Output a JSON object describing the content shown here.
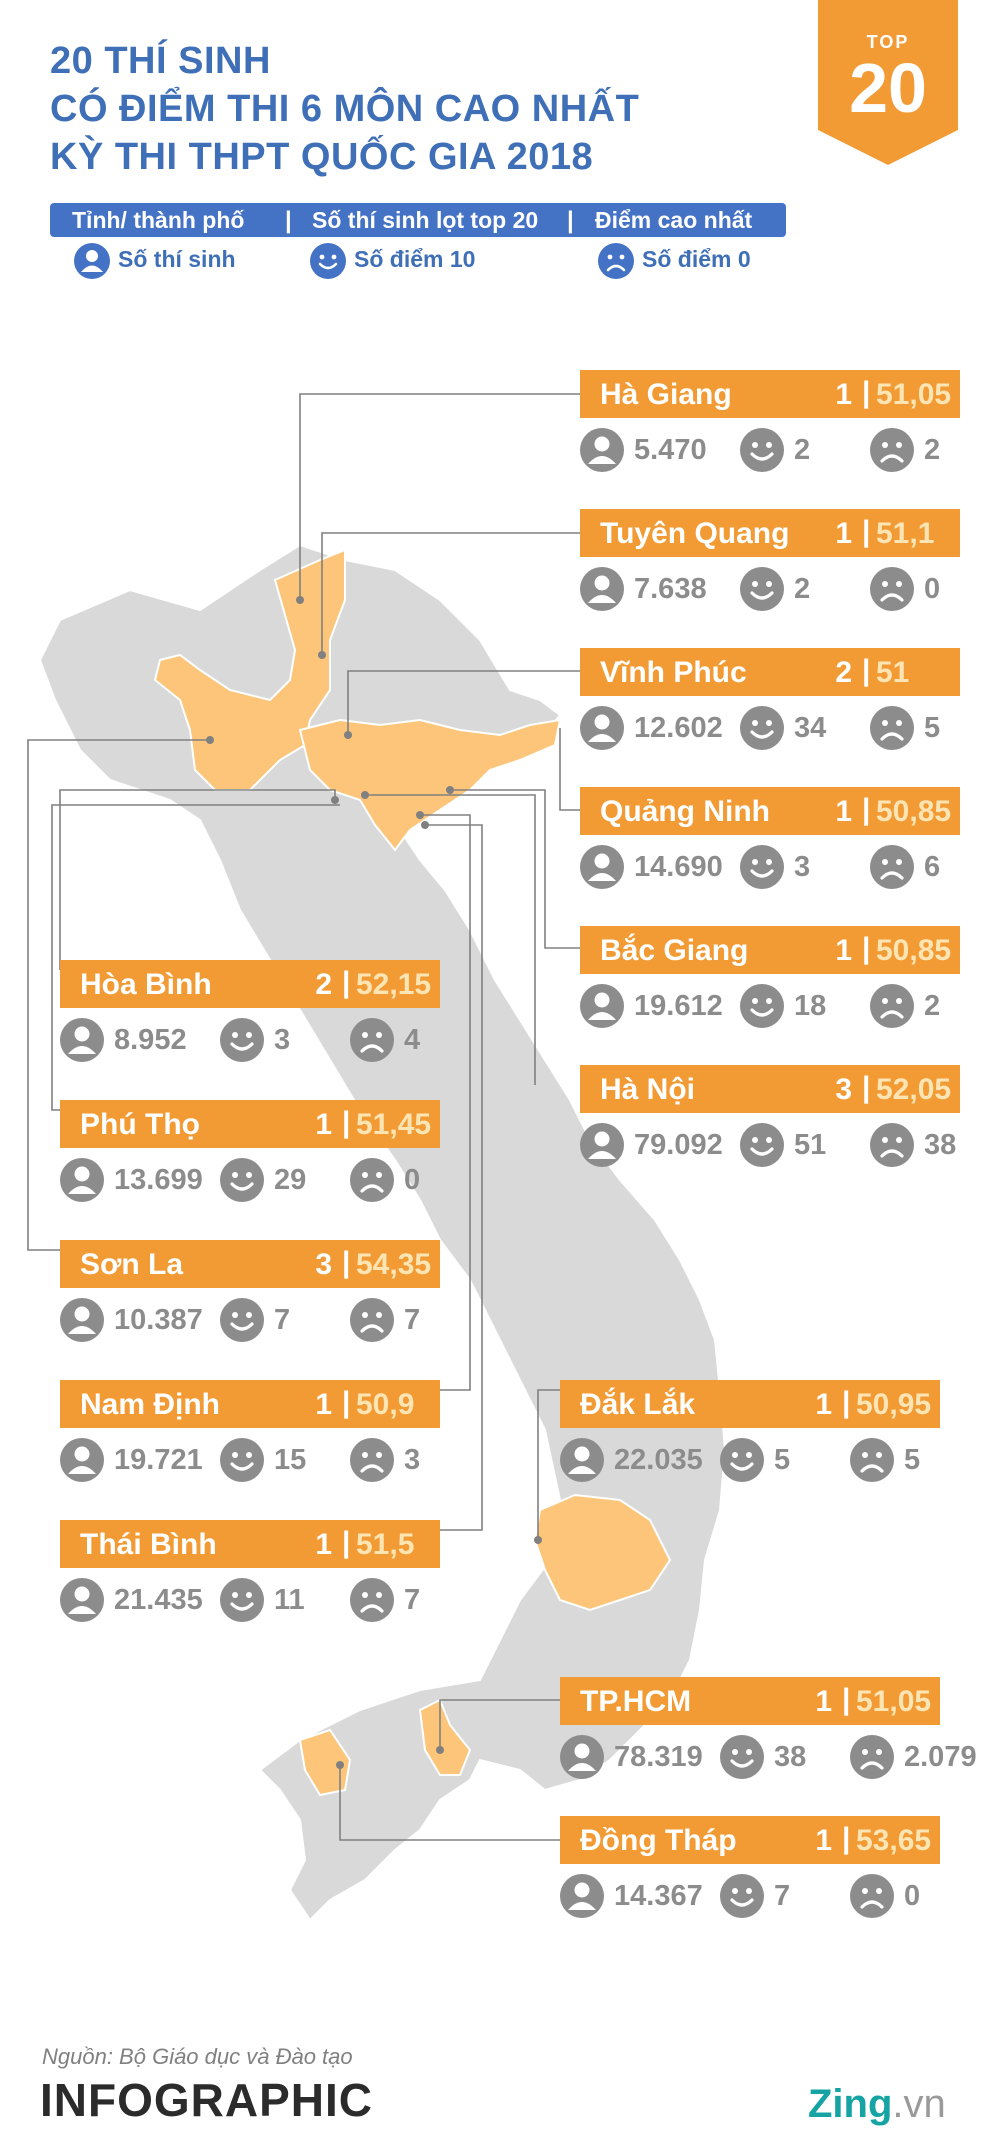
{
  "title": {
    "line1": "20 THÍ SINH",
    "line2": "CÓ ĐIỂM THI 6 MÔN CAO NHẤT",
    "line3": "KỲ THI THPT QUỐC GIA 2018"
  },
  "badge": {
    "top": "TOP",
    "number": "20"
  },
  "legend": {
    "col1": "Tỉnh/ thành phố",
    "col2": "Số thí sinh lọt top 20",
    "col3": "Điểm cao nhất",
    "sep": "|",
    "item1": "Số thí sinh",
    "item2": "Số điểm 10",
    "item3": "Số điểm 0"
  },
  "colors": {
    "accent": "#f29b35",
    "title_blue": "#3f6fb6",
    "legend_blue": "#4472c4",
    "stat_gray": "#8c8c8c",
    "map_gray": "#d9d9d9",
    "highlight": "#fcc57a"
  },
  "cards": [
    {
      "name": "Hà Giang",
      "count": "1",
      "score": "51,05",
      "students": "5.470",
      "tens": "2",
      "zeros": "2"
    },
    {
      "name": "Tuyên Quang",
      "count": "1",
      "score": "51,1",
      "students": "7.638",
      "tens": "2",
      "zeros": "0"
    },
    {
      "name": "Vĩnh Phúc",
      "count": "2",
      "score": "51",
      "students": "12.602",
      "tens": "34",
      "zeros": "5"
    },
    {
      "name": "Quảng Ninh",
      "count": "1",
      "score": "50,85",
      "students": "14.690",
      "tens": "3",
      "zeros": "6"
    },
    {
      "name": "Bắc Giang",
      "count": "1",
      "score": "50,85",
      "students": "19.612",
      "tens": "18",
      "zeros": "2"
    },
    {
      "name": "Hà Nội",
      "count": "3",
      "score": "52,05",
      "students": "79.092",
      "tens": "51",
      "zeros": "38"
    },
    {
      "name": "Hòa Bình",
      "count": "2",
      "score": "52,15",
      "students": "8.952",
      "tens": "3",
      "zeros": "4"
    },
    {
      "name": "Phú Thọ",
      "count": "1",
      "score": "51,45",
      "students": "13.699",
      "tens": "29",
      "zeros": "0"
    },
    {
      "name": "Sơn La",
      "count": "3",
      "score": "54,35",
      "students": "10.387",
      "tens": "7",
      "zeros": "7"
    },
    {
      "name": "Nam Định",
      "count": "1",
      "score": "50,9",
      "students": "19.721",
      "tens": "15",
      "zeros": "3"
    },
    {
      "name": "Thái Bình",
      "count": "1",
      "score": "51,5",
      "students": "21.435",
      "tens": "11",
      "zeros": "7"
    },
    {
      "name": "Đắk Lắk",
      "count": "1",
      "score": "50,95",
      "students": "22.035",
      "tens": "5",
      "zeros": "5"
    },
    {
      "name": "TP.HCM",
      "count": "1",
      "score": "51,05",
      "students": "78.319",
      "tens": "38",
      "zeros": "2.079"
    },
    {
      "name": "Đồng Tháp",
      "count": "1",
      "score": "53,65",
      "students": "14.367",
      "tens": "7",
      "zeros": "0"
    }
  ],
  "footer": {
    "source": "Nguồn: Bộ Giáo dục và Đào tạo",
    "brand": "INFOGRAPHIC",
    "site_name": "Zing",
    "site_tld": ".vn"
  }
}
